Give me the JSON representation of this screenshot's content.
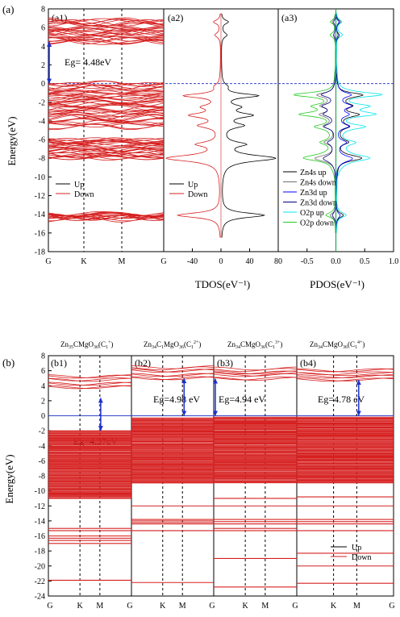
{
  "figure": {
    "label_a": "(a)",
    "label_b": "(b)",
    "band_dirs": [
      "G",
      "K",
      "M",
      "G"
    ],
    "fermi_level": 0
  },
  "chart_data": [
    {
      "type": "line",
      "panel": "(a1)",
      "ylabel": "Energy(eV)",
      "ylim": [
        -18,
        8
      ],
      "yticks": [
        -18,
        -16,
        -14,
        -12,
        -10,
        -8,
        -6,
        -4,
        -2,
        0,
        2,
        4,
        6,
        8
      ],
      "xticklabels": [
        "G",
        "K",
        "M",
        "G"
      ],
      "annotation": "Eg= 4.48eV",
      "gap": [
        0,
        4.48
      ],
      "legend": [
        "Up",
        "Down"
      ],
      "series_colors": [
        "#000000",
        "#d62020"
      ],
      "bands_bottom": [
        -14.4,
        -14.3,
        -14.2,
        -14.1,
        -14.0
      ],
      "bands_mid": [
        -8.0,
        -7.8,
        -7.6,
        -7.3,
        -7.1,
        -6.9,
        -6.6,
        -6.4,
        -6.2,
        -6.0
      ],
      "bands_vb": [
        -4.5,
        -4.2,
        -3.9,
        -3.6,
        -3.3,
        -3.0,
        -2.7,
        -2.4,
        -2.1,
        -1.8,
        -1.5,
        -1.2,
        -0.9,
        -0.6,
        -0.3,
        -0.1
      ],
      "bands_cb": [
        4.5,
        4.8,
        5.1,
        5.4,
        5.8,
        6.1,
        6.4,
        6.7
      ]
    },
    {
      "type": "line",
      "panel": "(a2)",
      "xlabel": "TDOS(eV⁻¹)",
      "xlim": [
        -80,
        80
      ],
      "xticks": [
        -40,
        0,
        40,
        80
      ],
      "legend": [
        "Up",
        "Down"
      ],
      "series_colors": [
        "#000000",
        "#d62020"
      ],
      "peaks": [
        {
          "e": 6.6,
          "w": 0.25,
          "h": 10
        },
        {
          "e": 5.2,
          "w": 0.3,
          "h": 8
        },
        {
          "e": -0.3,
          "w": 0.3,
          "h": 6
        },
        {
          "e": -1.3,
          "w": 0.25,
          "h": 50
        },
        {
          "e": -2.5,
          "w": 0.3,
          "h": 22
        },
        {
          "e": -3.4,
          "w": 0.3,
          "h": 40
        },
        {
          "e": -4.5,
          "w": 0.3,
          "h": 28
        },
        {
          "e": -6.5,
          "w": 0.3,
          "h": 30
        },
        {
          "e": -8.0,
          "w": 0.4,
          "h": 75
        },
        {
          "e": -14.1,
          "w": 0.3,
          "h": 60
        }
      ]
    },
    {
      "type": "line",
      "panel": "(a3)",
      "xlabel": "PDOS(eV⁻¹)",
      "xlim": [
        -1.0,
        1.0
      ],
      "xticks": [
        -0.5,
        0.0,
        0.5,
        1.0
      ],
      "xticklabels": [
        "-0.5",
        "0.0",
        "0.5",
        "1.0"
      ],
      "series": [
        {
          "name": "Zn4s up",
          "color": "#000000"
        },
        {
          "name": "Zn4s down",
          "color": "#707070"
        },
        {
          "name": "Zn3d up",
          "color": "#0000ff"
        },
        {
          "name": "Zn3d down",
          "color": "#000080"
        },
        {
          "name": "O2p up",
          "color": "#00e5ee"
        },
        {
          "name": "O2p down",
          "color": "#22cc22"
        }
      ],
      "peaks": [
        {
          "e": 6.6,
          "w": 0.25,
          "h": 0.12
        },
        {
          "e": 5.2,
          "w": 0.3,
          "h": 0.1
        },
        {
          "e": -1.2,
          "w": 0.3,
          "h": 0.75
        },
        {
          "e": -2.4,
          "w": 0.3,
          "h": 0.5
        },
        {
          "e": -3.3,
          "w": 0.3,
          "h": 0.6
        },
        {
          "e": -4.6,
          "w": 0.3,
          "h": 0.45
        },
        {
          "e": -6.3,
          "w": 0.3,
          "h": 0.35
        },
        {
          "e": -8.0,
          "w": 0.4,
          "h": 0.7
        },
        {
          "e": -14.1,
          "w": 0.3,
          "h": 0.2
        }
      ]
    },
    {
      "type": "line",
      "panel": "(b1)",
      "ylabel": "Energy(eV)",
      "ylim": [
        -24,
        8
      ],
      "yticks": [
        -24,
        -22,
        -20,
        -18,
        -16,
        -14,
        -12,
        -10,
        -8,
        -6,
        -4,
        -2,
        0,
        2,
        4,
        6,
        8
      ],
      "xticklabels": [
        "G",
        "K",
        "M",
        "G"
      ],
      "annotation": "Eg=4.37eV",
      "gap": [
        -2.0,
        2.37
      ],
      "vb_range": [
        -11.0,
        -2.0
      ],
      "cb": [
        3.8,
        4.3,
        4.8,
        5.3
      ],
      "deep_bands": [
        -15.0,
        -15.3,
        -16.0,
        -16.3,
        -16.6,
        -17.0,
        -21.9
      ]
    },
    {
      "type": "line",
      "panel": "(b2)",
      "xticklabels": [
        "G",
        "K",
        "M",
        "G"
      ],
      "annotation": "Eg=4.98 eV",
      "gap": [
        0,
        4.98
      ],
      "vb_range": [
        -9.0,
        -0.3
      ],
      "cb": [
        5.0,
        5.5,
        6.0,
        6.4
      ],
      "deep_bands": [
        -12.0,
        -13.8,
        -14.0,
        -14.2,
        -14.4,
        -15.3,
        -22.2
      ]
    },
    {
      "type": "line",
      "panel": "(b3)",
      "xticklabels": [
        "G",
        "K",
        "M",
        "G"
      ],
      "annotation": "Eg=4.94 eV",
      "gap": [
        0,
        4.94
      ],
      "vb_range": [
        -9.0,
        -0.2
      ],
      "cb": [
        5.0,
        5.4,
        5.8,
        6.2
      ],
      "deep_bands": [
        -11.0,
        -12.0,
        -13.8,
        -14.1,
        -14.4,
        -15.0,
        -15.3,
        -19.0,
        -22.8
      ]
    },
    {
      "type": "line",
      "panel": "(b4)",
      "xticklabels": [
        "G",
        "K",
        "M",
        "G"
      ],
      "annotation": "Eg=4.78 eV",
      "gap": [
        0,
        4.78
      ],
      "vb_range": [
        -9.0,
        -0.2
      ],
      "cb": [
        4.8,
        5.2,
        5.6,
        6.0
      ],
      "deep_bands": [
        -10.8,
        -12.0,
        -13.8,
        -14.1,
        -14.4,
        -15.3,
        -18.3,
        -20.0,
        -22.3
      ],
      "legend": [
        "Up",
        "Down"
      ],
      "series_colors": [
        "#000000",
        "#d62020"
      ]
    }
  ]
}
